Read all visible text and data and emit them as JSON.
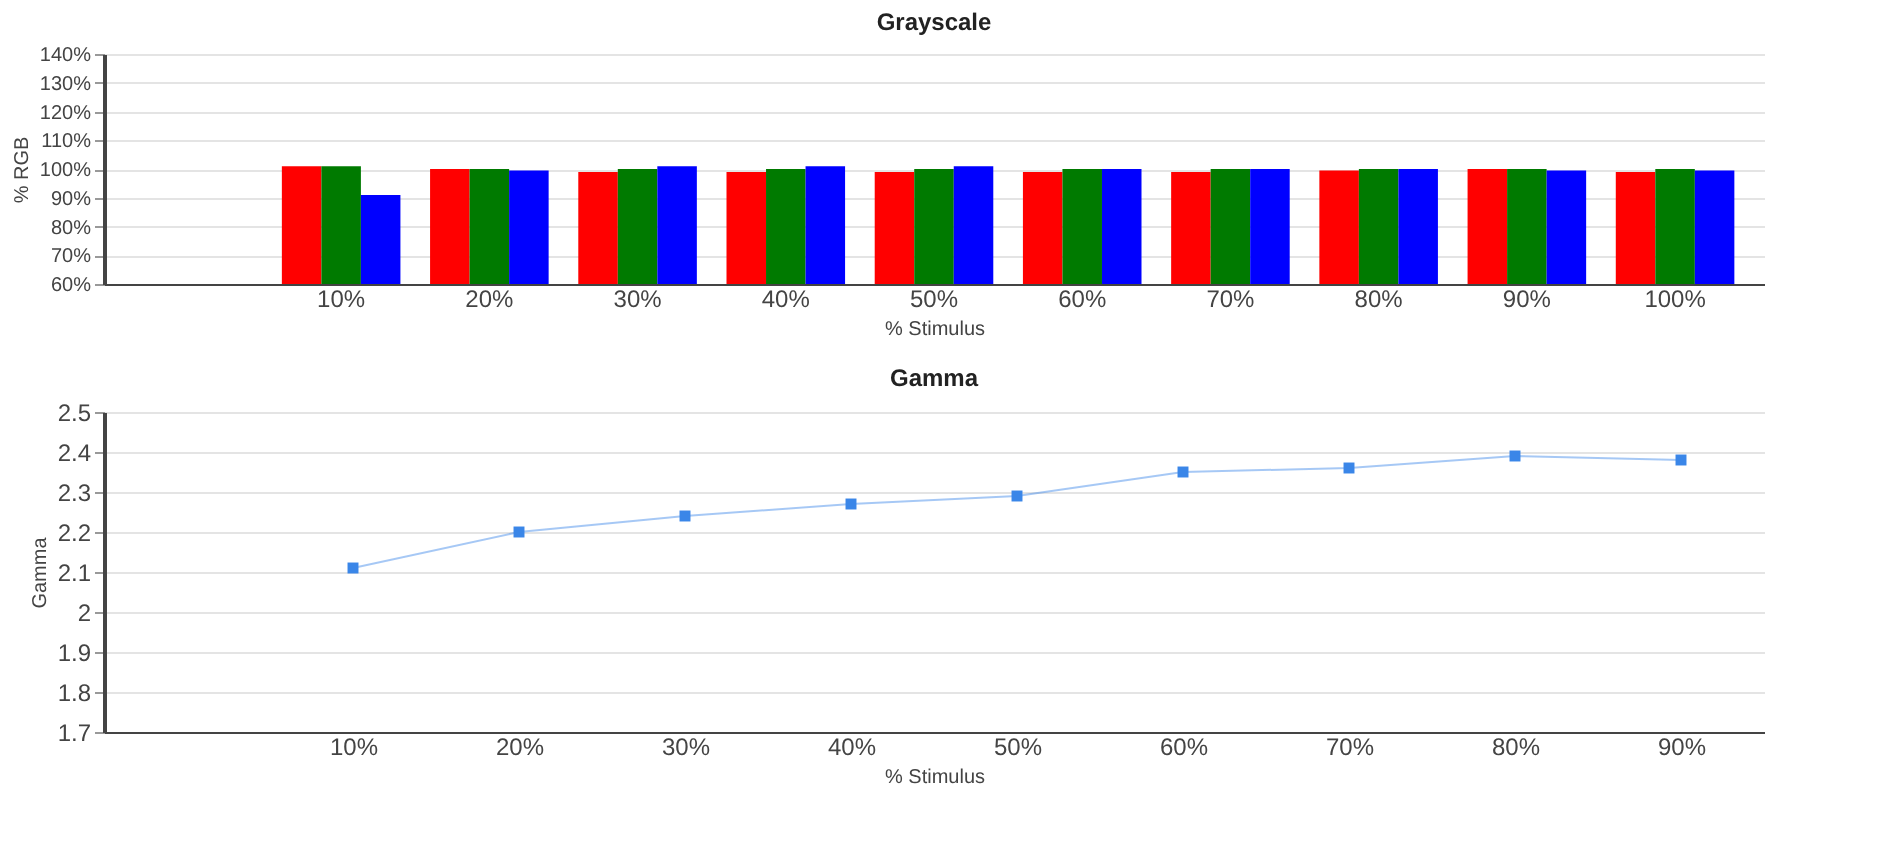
{
  "chart_data": [
    {
      "type": "bar",
      "title": "Grayscale",
      "xlabel": "% Stimulus",
      "ylabel": "% RGB",
      "categories": [
        null,
        "10%",
        "20%",
        "30%",
        "40%",
        "50%",
        "60%",
        "70%",
        "80%",
        "90%",
        "100%"
      ],
      "series": [
        {
          "color": "#ff0000",
          "values": [
            null,
            101,
            100,
            99,
            99,
            99,
            99,
            99,
            99.5,
            100,
            99
          ]
        },
        {
          "color": "#007a00",
          "values": [
            null,
            101,
            100,
            100,
            100,
            100,
            100,
            100,
            100,
            100,
            100
          ]
        },
        {
          "color": "#0000ff",
          "values": [
            null,
            91,
            99.5,
            101,
            101,
            101,
            100,
            100,
            100,
            99.5,
            99.5
          ]
        }
      ],
      "ylim": [
        60,
        140
      ],
      "yticks": [
        {
          "value": 60,
          "label": "60%"
        },
        {
          "value": 70,
          "label": "70%"
        },
        {
          "value": 80,
          "label": "80%"
        },
        {
          "value": 90,
          "label": "90%"
        },
        {
          "value": 100,
          "label": "100%"
        },
        {
          "value": 110,
          "label": "110%"
        },
        {
          "value": 120,
          "label": "120%"
        },
        {
          "value": 130,
          "label": "130%"
        },
        {
          "value": 140,
          "label": "140%"
        }
      ],
      "grid": "y",
      "legend": false
    },
    {
      "type": "line",
      "title": "Gamma",
      "xlabel": "% Stimulus",
      "ylabel": "Gamma",
      "categories": [
        null,
        "10%",
        "20%",
        "30%",
        "40%",
        "50%",
        "60%",
        "70%",
        "80%",
        "90%"
      ],
      "series": [
        {
          "color": "#3a86e8",
          "values": [
            null,
            2.11,
            2.2,
            2.24,
            2.27,
            2.29,
            2.35,
            2.36,
            2.39,
            2.38
          ]
        }
      ],
      "ylim": [
        1.7,
        2.5
      ],
      "yticks": [
        1.7,
        1.8,
        1.9,
        2,
        2.1,
        2.2,
        2.3,
        2.4,
        2.5
      ],
      "grid": "y",
      "legend": false,
      "marker": "square"
    }
  ]
}
